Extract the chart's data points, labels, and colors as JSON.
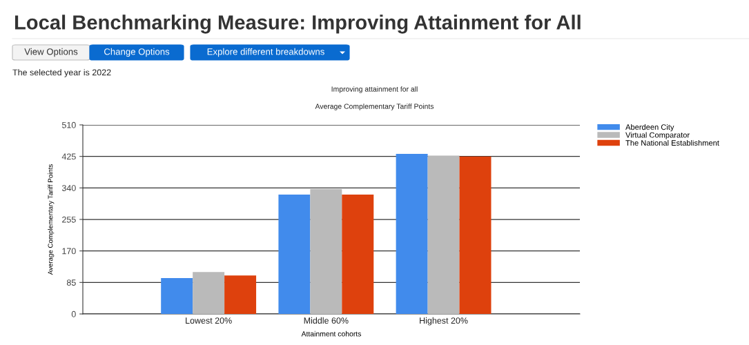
{
  "chart_data": {
    "type": "bar",
    "title": "Local Benchmarking Measure: Improving Attainment for All",
    "subtitle": "Improving attainment for all",
    "annotations": [
      "View Options",
      "Change Options",
      "Explore different breakdowns",
      "The selected year is 2022",
      "Average Complementary Tariff Points"
    ],
    "xlabel": "Attainment cohorts",
    "ylabel": "Average Complementary Tariff Points",
    "categories": [
      "Lowest 20%",
      "Middle 60%",
      "Highest 20%"
    ],
    "series": [
      {
        "name": "Aberdeen City",
        "color": "#418bec",
        "values": [
          97,
          322,
          432
        ]
      },
      {
        "name": "Virtual Comparator",
        "color": "#bababa",
        "values": [
          113,
          337,
          427
        ]
      },
      {
        "name": "The National Establishment",
        "color": "#de410d",
        "values": [
          104,
          322,
          425
        ]
      }
    ],
    "ylim": [
      0,
      510
    ],
    "yticks": [
      0,
      85,
      170,
      255,
      340,
      425,
      510
    ],
    "grid": "y",
    "legend": "top right"
  }
}
